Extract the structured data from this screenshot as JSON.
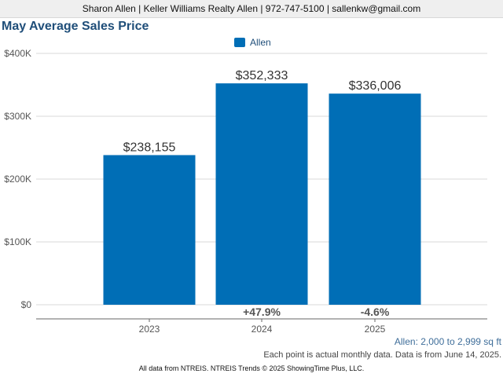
{
  "header": {
    "contact": "Sharon Allen | Keller Williams Realty Allen | 972-747-5100 | sallenkw@gmail.com"
  },
  "colors": {
    "bar": "#006eb6",
    "title": "#1f4e79",
    "grid": "#d9d9d9",
    "axis": "#555555"
  },
  "chart_data": {
    "type": "bar",
    "title": "May Average Sales Price",
    "xlabel": "",
    "ylabel": "",
    "categories": [
      "2023",
      "2024",
      "2025"
    ],
    "series": [
      {
        "name": "Allen",
        "values": [
          238155,
          352333,
          336006
        ],
        "value_labels": [
          "$238,155",
          "$352,333",
          "$336,006"
        ]
      }
    ],
    "change_labels": [
      "",
      "+47.9%",
      "-4.6%"
    ],
    "yticks": [
      0,
      100000,
      200000,
      300000,
      400000
    ],
    "ytick_labels": [
      "$0",
      "$100K",
      "$200K",
      "$300K",
      "$400K"
    ],
    "ylim": [
      0,
      400000
    ],
    "grid": true,
    "legend_position": "top-center"
  },
  "notes": {
    "subtitle": "Allen: 2,000 to 2,999 sq ft",
    "data_note": "Each point is actual monthly data. Data is from June 14, 2025."
  },
  "footer": {
    "text": "All data from NTREIS. NTREIS Trends © 2025 ShowingTime Plus, LLC."
  }
}
